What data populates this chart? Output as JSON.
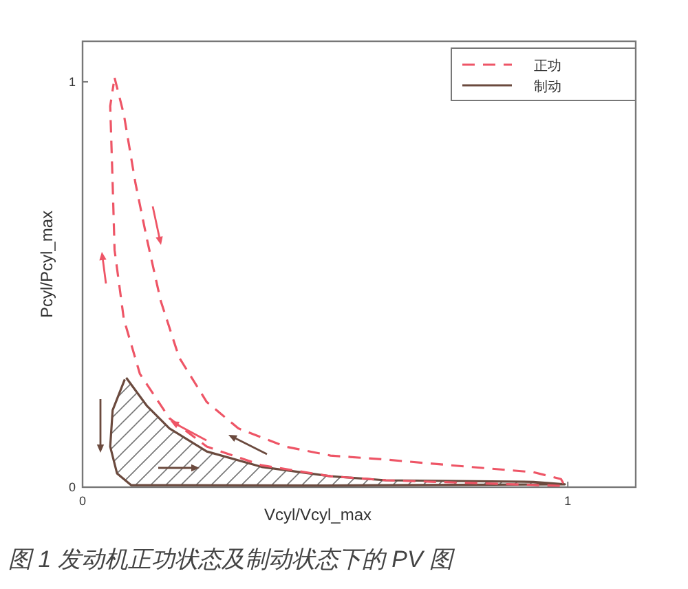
{
  "chart_data": {
    "type": "line",
    "xlabel": "Vcyl/Vcyl_max",
    "ylabel": "Pcyl/Pcyl_max",
    "xlim": [
      0,
      1.14
    ],
    "ylim": [
      0,
      1.1
    ],
    "xticks": [
      0,
      1
    ],
    "yticks": [
      0,
      1
    ],
    "grid": false,
    "legend": "top right",
    "series": [
      {
        "name": "正功",
        "color": "#ee5566",
        "line_style": "dashed",
        "x": [
          0.066,
          0.085,
          0.109,
          0.133,
          0.161,
          0.199,
          0.256,
          0.321,
          0.418,
          0.511,
          0.625,
          0.759,
          0.929,
          0.986,
          0.994,
          0.625,
          0.511,
          0.369,
          0.256,
          0.179,
          0.118,
          0.085,
          0.066,
          0.062,
          0.057,
          0.064
        ],
        "values": [
          1.01,
          0.92,
          0.75,
          0.61,
          0.46,
          0.32,
          0.21,
          0.145,
          0.1,
          0.078,
          0.068,
          0.054,
          0.037,
          0.02,
          0.003,
          0.017,
          0.027,
          0.054,
          0.1,
          0.17,
          0.28,
          0.415,
          0.585,
          0.75,
          0.94,
          0.995
        ]
      },
      {
        "name": "制动",
        "color": "#6b4a3e",
        "line_style": "solid",
        "x": [
          0.09,
          0.133,
          0.179,
          0.256,
          0.369,
          0.511,
          0.625,
          0.929,
          0.994,
          0.5,
          0.1,
          0.071,
          0.057,
          0.062,
          0.087
        ],
        "values": [
          0.27,
          0.2,
          0.145,
          0.088,
          0.05,
          0.027,
          0.017,
          0.013,
          0.007,
          0.004,
          0.005,
          0.034,
          0.1,
          0.19,
          0.266
        ]
      }
    ],
    "annotations": [
      "图 1 发动机正功状态及制动状态下的 PV 图"
    ]
  }
}
